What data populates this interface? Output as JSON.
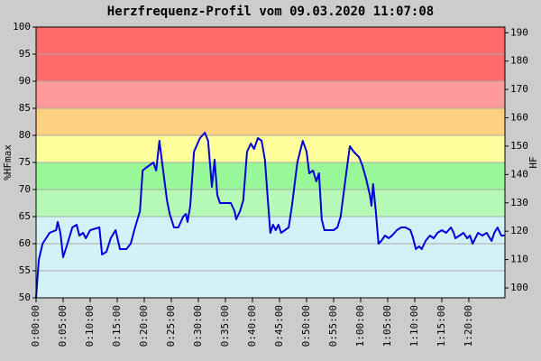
{
  "chart_data": {
    "type": "line",
    "title": "Herzfrequenz-Profil vom 09.03.2020 11:07:08",
    "ylabel": "%HFmax",
    "y2label": "HF",
    "color": "#0000dd",
    "grid": true,
    "xlim": [
      0,
      86.67
    ],
    "ylim": [
      50,
      100
    ],
    "y2lim": [
      96.5,
      192
    ],
    "yticks": [
      50,
      55,
      60,
      65,
      70,
      75,
      80,
      85,
      90,
      95,
      100
    ],
    "y2ticks": [
      100,
      110,
      120,
      130,
      140,
      150,
      160,
      170,
      180,
      190
    ],
    "xticks": [
      {
        "value": 0,
        "label": "0:00:00"
      },
      {
        "value": 5,
        "label": "0:05:00"
      },
      {
        "value": 10,
        "label": "0:10:00"
      },
      {
        "value": 15,
        "label": "0:15:00"
      },
      {
        "value": 20,
        "label": "0:20:00"
      },
      {
        "value": 25,
        "label": "0:25:00"
      },
      {
        "value": 30,
        "label": "0:30:00"
      },
      {
        "value": 35,
        "label": "0:35:00"
      },
      {
        "value": 40,
        "label": "0:40:00"
      },
      {
        "value": 45,
        "label": "0:45:00"
      },
      {
        "value": 50,
        "label": "0:50:00"
      },
      {
        "value": 55,
        "label": "0:55:00"
      },
      {
        "value": 60,
        "label": "1:00:00"
      },
      {
        "value": 65,
        "label": "1:05:00"
      },
      {
        "value": 70,
        "label": "1:10:00"
      },
      {
        "value": 75,
        "label": "1:15:00"
      },
      {
        "value": 80,
        "label": "1:20:00"
      }
    ],
    "zones": [
      {
        "from": 50,
        "to": 65,
        "color": "#d2f2f8"
      },
      {
        "from": 65,
        "to": 70,
        "color": "#b4fab4"
      },
      {
        "from": 70,
        "to": 75,
        "color": "#98f898"
      },
      {
        "from": 75,
        "to": 80,
        "color": "#ffff9c"
      },
      {
        "from": 80,
        "to": 85,
        "color": "#ffd080"
      },
      {
        "from": 85,
        "to": 90,
        "color": "#ff9a9a"
      },
      {
        "from": 90,
        "to": 100,
        "color": "#ff6a6a"
      }
    ],
    "x": [
      0,
      0.5,
      1.2,
      2.5,
      3.7,
      4,
      4.5,
      5,
      5.8,
      6.7,
      7.5,
      8,
      8.7,
      9.2,
      10,
      11.7,
      12.2,
      13,
      13.8,
      14.7,
      15.5,
      16.7,
      17.5,
      18.3,
      19.2,
      19.7,
      20.3,
      21,
      21.7,
      22.2,
      22.8,
      23.3,
      24.2,
      24.7,
      25.5,
      26.3,
      27.2,
      27.7,
      28,
      28.5,
      29.2,
      30.3,
      31.2,
      31.8,
      32.5,
      33,
      33.5,
      34,
      36,
      36.7,
      37,
      37.7,
      38.3,
      39,
      39.7,
      40.3,
      41,
      41.7,
      42.3,
      43,
      43.3,
      43.8,
      44.3,
      44.8,
      45.3,
      46,
      46.7,
      47.3,
      48.3,
      49.3,
      50,
      50.5,
      51.2,
      51.8,
      52.3,
      52.8,
      53.3,
      55,
      55.7,
      56.3,
      57.2,
      58,
      58.7,
      59.7,
      60.3,
      61,
      61.7,
      62,
      62.3,
      62.8,
      63.3,
      63.8,
      64.5,
      65.2,
      65.8,
      66.7,
      67.5,
      68.3,
      69.2,
      69.7,
      70.2,
      70.8,
      71.3,
      72,
      72.8,
      73.5,
      74.2,
      75,
      75.8,
      76.7,
      77.2,
      77.5,
      78.3,
      79,
      79.7,
      80.2,
      80.7,
      81.2,
      81.7,
      82.5,
      83.3,
      84.2,
      84.7,
      85.3,
      86,
      86.7
    ],
    "values": [
      50,
      57,
      60,
      62,
      62.5,
      64,
      62,
      57.5,
      60,
      63,
      63.5,
      61.5,
      62,
      61,
      62.5,
      63,
      58,
      58.5,
      61,
      62.5,
      59,
      59,
      60,
      63,
      66,
      73.5,
      74,
      74.5,
      75,
      73.5,
      79,
      75,
      68,
      65.5,
      63,
      63,
      65,
      65.5,
      64,
      67,
      77,
      79.5,
      80.5,
      79,
      70.5,
      75.5,
      69,
      67.5,
      67.5,
      66,
      64.5,
      66,
      68,
      77,
      78.5,
      77.5,
      79.5,
      79,
      75.5,
      66,
      62,
      63.5,
      62.5,
      63.5,
      62,
      62.5,
      63,
      67,
      75,
      79,
      77,
      73,
      73.5,
      71.5,
      73,
      64.5,
      62.5,
      62.5,
      63,
      65,
      72,
      78,
      77,
      76,
      74.5,
      72,
      69,
      67,
      71,
      66,
      60,
      60.5,
      61.5,
      61,
      61.5,
      62.5,
      63,
      63,
      62.5,
      61,
      59,
      59.5,
      59,
      60.5,
      61.5,
      61,
      62,
      62.5,
      62,
      63,
      62,
      61,
      61.5,
      62,
      61,
      61.5,
      60,
      61,
      62,
      61.5,
      62,
      60.5,
      62,
      63,
      61.5,
      61.5
    ]
  }
}
